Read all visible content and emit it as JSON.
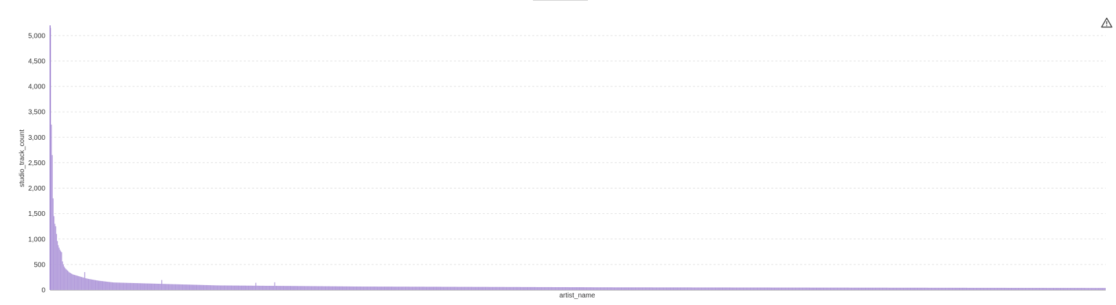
{
  "colors": {
    "bar": "#b39ddb",
    "bar_stroke": "#9c80d0",
    "grid": "#e2e2e2",
    "text": "#333333"
  },
  "icons": {
    "warning": "warning-triangle-icon"
  },
  "chart_data": {
    "type": "bar",
    "title": "",
    "xlabel": "artist_name",
    "ylabel": "studio_track_count",
    "ylim": [
      0,
      5200
    ],
    "yticks": [
      0,
      500,
      1000,
      1500,
      2000,
      2500,
      3000,
      3500,
      4000,
      4500,
      5000
    ],
    "ytick_labels": [
      "0",
      "500",
      "1,000",
      "1,500",
      "2,000",
      "2,500",
      "3,000",
      "3,500",
      "4,000",
      "4,500",
      "5,000"
    ],
    "grid": true,
    "category_labels_shown": false,
    "segments": [
      {
        "values": [
          5150,
          3250,
          2650,
          1800,
          1450,
          1300,
          1250,
          1100,
          960,
          880,
          830,
          790,
          760,
          740,
          560,
          500,
          460,
          430,
          410,
          395,
          380,
          360
        ]
      },
      {
        "values": [
          345,
          335,
          325,
          315,
          305,
          300,
          295,
          290,
          285,
          280,
          275,
          270,
          265,
          260,
          255,
          250,
          245,
          240,
          235,
          230,
          226,
          222,
          218,
          215,
          212,
          209,
          206,
          203,
          200,
          197,
          194,
          191,
          188,
          185,
          182,
          180,
          178,
          176,
          174,
          172,
          170,
          168,
          166,
          164,
          162,
          160,
          158,
          156,
          154,
          152,
          150,
          148
        ]
      },
      {
        "count": 60,
        "from": 146,
        "to": 118
      },
      {
        "count": 60,
        "from": 117,
        "to": 90
      },
      {
        "count": 160,
        "from": 89,
        "to": 68
      },
      {
        "count": 280,
        "from": 67,
        "to": 52
      },
      {
        "count": 600,
        "from": 51,
        "to": 38
      }
    ],
    "spikes": [
      {
        "index": 40,
        "value": 350
      },
      {
        "index": 130,
        "value": 195
      },
      {
        "index": 240,
        "value": 140
      },
      {
        "index": 262,
        "value": 150
      }
    ]
  }
}
